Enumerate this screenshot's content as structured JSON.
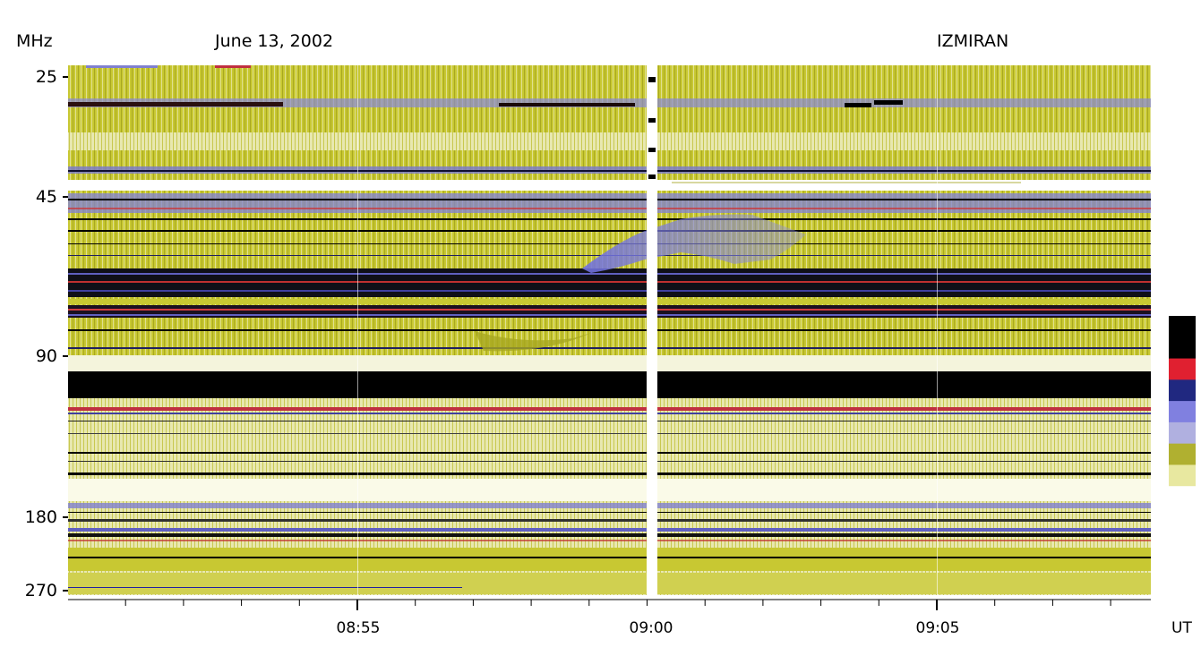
{
  "header": {
    "unit_label": "MHz",
    "date": "June 13, 2002",
    "observatory": "IZMIRAN",
    "time_unit": "UT"
  },
  "colors": {
    "background_yellow": "#c8c832",
    "pale": "#f0f0c8",
    "blue": "#7878e6",
    "red": "#e63232",
    "black": "#000000"
  },
  "colorbar": [
    "#000000",
    "#000000",
    "#e02030",
    "#202880",
    "#8080e0",
    "#b0b0e0",
    "#b0b030",
    "#e8e8a0",
    "#ffffff"
  ],
  "chart_data": {
    "type": "heatmap",
    "title": "June 13, 2002",
    "observatory": "IZMIRAN",
    "ylabel": "MHz",
    "xlabel": "UT",
    "y_scale": "log",
    "y_ticks": [
      "25",
      "45",
      "90",
      "180",
      "270"
    ],
    "x_ticks": [
      "08:55",
      "09:00",
      "09:05"
    ],
    "x_range": [
      "08:50",
      "09:09"
    ],
    "y_range": [
      25,
      270
    ],
    "features": [
      {
        "name": "drifting burst",
        "time_start": "08:58",
        "time_end": "09:03",
        "freq_range": [
          50,
          90
        ]
      }
    ]
  }
}
